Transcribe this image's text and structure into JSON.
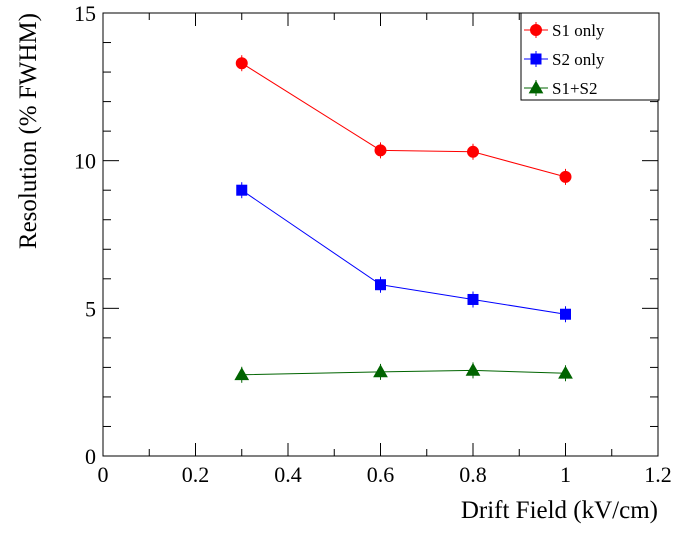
{
  "chart_data": {
    "type": "line",
    "xlabel": "Drift Field (kV/cm)",
    "ylabel": "Resolution (% FWHM)",
    "xlim": [
      0,
      1.2
    ],
    "ylim": [
      0,
      15
    ],
    "x_ticks": [
      "0",
      "0.2",
      "0.4",
      "0.6",
      "0.8",
      "1",
      "1.2"
    ],
    "y_ticks": [
      "0",
      "5",
      "10",
      "15"
    ],
    "grid": false,
    "legend_position": "top-right",
    "x": [
      0.3,
      0.6,
      0.8,
      1.0
    ],
    "series": [
      {
        "name": "S1 only",
        "values": [
          13.3,
          10.35,
          10.3,
          9.45
        ],
        "color": "#ff0000",
        "marker": "circle"
      },
      {
        "name": "S2 only",
        "values": [
          9.0,
          5.8,
          5.3,
          4.8
        ],
        "color": "#0000ff",
        "marker": "square"
      },
      {
        "name": "S1+S2",
        "values": [
          2.75,
          2.85,
          2.9,
          2.8
        ],
        "color": "#006400",
        "marker": "triangle"
      }
    ]
  }
}
